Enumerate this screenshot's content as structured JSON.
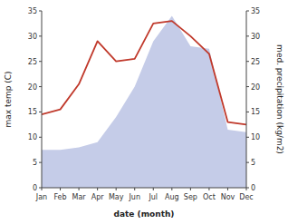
{
  "chart_data": {
    "type": "line",
    "categories": [
      "Jan",
      "Feb",
      "Mar",
      "Apr",
      "May",
      "Jun",
      "Jul",
      "Aug",
      "Sep",
      "Oct",
      "Nov",
      "Dec"
    ],
    "series": [
      {
        "type": "area",
        "color": "#c5cce8",
        "axis": "y2",
        "values": [
          7.5,
          7.5,
          8.0,
          9.0,
          14.0,
          20.0,
          29.0,
          34.0,
          28.0,
          27.5,
          11.5,
          11.0
        ]
      },
      {
        "type": "line",
        "color": "#c0392b",
        "values": [
          14.5,
          15.5,
          20.5,
          29.0,
          25.0,
          25.5,
          32.5,
          33.0,
          30.0,
          26.5,
          13.0,
          12.5
        ]
      }
    ],
    "x_label": "date (month)",
    "y_label": "max temp (C)",
    "y2_label": "med. precipitation (kg/m2)",
    "ylim": [
      0,
      35
    ],
    "yticks": [
      0,
      5,
      10,
      15,
      20,
      25,
      30,
      35
    ],
    "y2lim": [
      0,
      35
    ],
    "y2ticks": [
      0,
      5,
      10,
      15,
      20,
      25,
      30,
      35
    ],
    "grid": false
  }
}
